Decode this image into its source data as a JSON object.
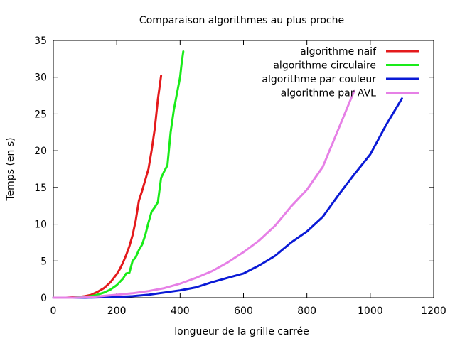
{
  "chart_data": {
    "type": "line",
    "title": "Comparaison algorithmes au plus proche",
    "xlabel": "longueur de la grille carrée",
    "ylabel": "Temps (en s)",
    "xlim": [
      0,
      1200
    ],
    "ylim": [
      0,
      35
    ],
    "x_ticks": [
      0,
      200,
      400,
      600,
      800,
      1000,
      1200
    ],
    "y_ticks": [
      0,
      5,
      10,
      15,
      20,
      25,
      30,
      35
    ],
    "grid": false,
    "legend_position": "top-right",
    "series": [
      {
        "name": "algorithme naif",
        "color": "#e41a1c",
        "points": [
          [
            0,
            0
          ],
          [
            40,
            0
          ],
          [
            80,
            0.1
          ],
          [
            100,
            0.2
          ],
          [
            120,
            0.4
          ],
          [
            140,
            0.8
          ],
          [
            160,
            1.3
          ],
          [
            180,
            2.1
          ],
          [
            200,
            3.2
          ],
          [
            210,
            3.9
          ],
          [
            220,
            4.8
          ],
          [
            230,
            5.8
          ],
          [
            240,
            7.0
          ],
          [
            250,
            8.5
          ],
          [
            260,
            10.5
          ],
          [
            270,
            13.2
          ],
          [
            280,
            14.5
          ],
          [
            290,
            16.0
          ],
          [
            300,
            17.5
          ],
          [
            310,
            20.0
          ],
          [
            320,
            23.0
          ],
          [
            330,
            27.0
          ],
          [
            340,
            30.2
          ]
        ]
      },
      {
        "name": "algorithme circulaire",
        "color": "#1aeb1a",
        "points": [
          [
            0,
            0
          ],
          [
            60,
            0
          ],
          [
            100,
            0.1
          ],
          [
            130,
            0.3
          ],
          [
            160,
            0.7
          ],
          [
            180,
            1.1
          ],
          [
            200,
            1.7
          ],
          [
            220,
            2.6
          ],
          [
            230,
            3.3
          ],
          [
            240,
            3.4
          ],
          [
            245,
            4.2
          ],
          [
            250,
            5.0
          ],
          [
            260,
            5.5
          ],
          [
            270,
            6.5
          ],
          [
            280,
            7.2
          ],
          [
            290,
            8.5
          ],
          [
            300,
            10.2
          ],
          [
            310,
            11.7
          ],
          [
            320,
            12.3
          ],
          [
            330,
            13.0
          ],
          [
            340,
            16.3
          ],
          [
            350,
            17.2
          ],
          [
            360,
            18.0
          ],
          [
            370,
            22.5
          ],
          [
            380,
            25.5
          ],
          [
            390,
            27.8
          ],
          [
            400,
            30.0
          ],
          [
            405,
            32.0
          ],
          [
            410,
            33.5
          ]
        ]
      },
      {
        "name": "algorithme par couleur",
        "color": "#0a1ad6",
        "points": [
          [
            0,
            0
          ],
          [
            100,
            0
          ],
          [
            150,
            0.05
          ],
          [
            200,
            0.1
          ],
          [
            250,
            0.2
          ],
          [
            300,
            0.4
          ],
          [
            350,
            0.7
          ],
          [
            400,
            1.0
          ],
          [
            450,
            1.4
          ],
          [
            500,
            2.1
          ],
          [
            550,
            2.7
          ],
          [
            600,
            3.3
          ],
          [
            650,
            4.4
          ],
          [
            700,
            5.7
          ],
          [
            750,
            7.5
          ],
          [
            800,
            9.0
          ],
          [
            850,
            11.0
          ],
          [
            900,
            14.0
          ],
          [
            950,
            16.8
          ],
          [
            1000,
            19.5
          ],
          [
            1050,
            23.5
          ],
          [
            1100,
            27.1
          ]
        ]
      },
      {
        "name": "algorithme par AVL",
        "color": "#e680e6",
        "points": [
          [
            0,
            0
          ],
          [
            60,
            0
          ],
          [
            100,
            0.05
          ],
          [
            150,
            0.2
          ],
          [
            200,
            0.4
          ],
          [
            250,
            0.6
          ],
          [
            300,
            0.9
          ],
          [
            350,
            1.3
          ],
          [
            400,
            1.9
          ],
          [
            450,
            2.7
          ],
          [
            500,
            3.6
          ],
          [
            550,
            4.8
          ],
          [
            600,
            6.2
          ],
          [
            650,
            7.8
          ],
          [
            700,
            9.8
          ],
          [
            750,
            12.4
          ],
          [
            800,
            14.7
          ],
          [
            850,
            17.8
          ],
          [
            900,
            23.0
          ],
          [
            950,
            28.2
          ]
        ]
      }
    ]
  }
}
